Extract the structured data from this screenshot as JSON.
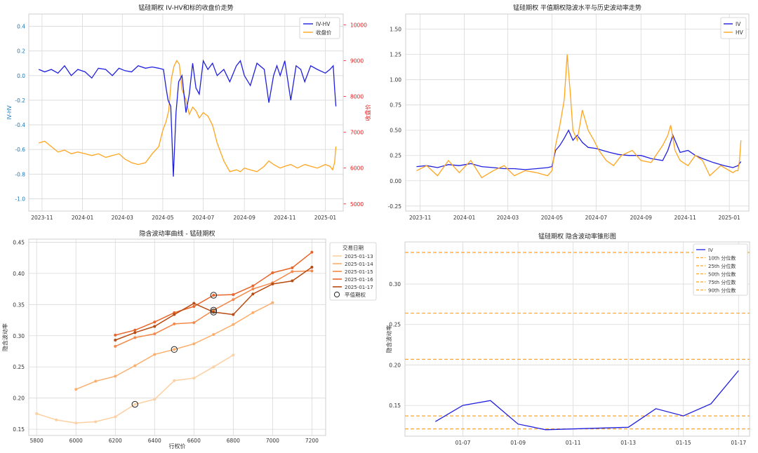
{
  "colors": {
    "iv_blue": "#1f1fe0",
    "orange": "#ffa51f",
    "red_axis": "#e02020",
    "blue_axis": "#1f77b4",
    "grid": "#d9d9d9",
    "frame": "#cfcfcf"
  },
  "chart_data": [
    {
      "type": "line",
      "title": "锰硅期权 IV-HV和标的收盘价走势",
      "ylabel": "IV-HV",
      "ylabel_right": "收盘价",
      "x_ticks": [
        "2023-11",
        "2024-01",
        "2024-03",
        "2024-05",
        "2024-07",
        "2024-09",
        "2024-11",
        "2025-01"
      ],
      "y_ticks": [
        "-1.0",
        "-0.8",
        "-0.6",
        "-0.4",
        "-0.2",
        "0.0",
        "0.2",
        "0.4"
      ],
      "y2_ticks": [
        "5000",
        "6000",
        "7000",
        "8000",
        "9000",
        "10000"
      ],
      "ylim": [
        -1.1,
        0.5
      ],
      "y2lim": [
        4800,
        10300
      ],
      "legend": [
        "IV-HV",
        "收盘价"
      ],
      "legend_position": "top-right",
      "grid": true,
      "series": [
        {
          "name": "IV-HV",
          "x": [
            "2023-10-27",
            "2023-11-05",
            "2023-11-15",
            "2023-11-25",
            "2023-12-05",
            "2023-12-15",
            "2023-12-25",
            "2024-01-05",
            "2024-01-15",
            "2024-01-25",
            "2024-02-05",
            "2024-02-15",
            "2024-02-25",
            "2024-03-05",
            "2024-03-15",
            "2024-03-25",
            "2024-04-05",
            "2024-04-15",
            "2024-04-25",
            "2024-05-02",
            "2024-05-06",
            "2024-05-09",
            "2024-05-13",
            "2024-05-17",
            "2024-05-21",
            "2024-05-25",
            "2024-05-30",
            "2024-06-05",
            "2024-06-10",
            "2024-06-15",
            "2024-06-20",
            "2024-06-25",
            "2024-07-01",
            "2024-07-08",
            "2024-07-15",
            "2024-07-22",
            "2024-08-01",
            "2024-08-10",
            "2024-08-20",
            "2024-08-26",
            "2024-09-01",
            "2024-09-10",
            "2024-09-20",
            "2024-10-01",
            "2024-10-08",
            "2024-10-15",
            "2024-10-20",
            "2024-10-25",
            "2024-11-01",
            "2024-11-10",
            "2024-11-18",
            "2024-11-25",
            "2024-12-01",
            "2024-12-10",
            "2024-12-20",
            "2025-01-01",
            "2025-01-08",
            "2025-01-13",
            "2025-01-15",
            "2025-01-17"
          ],
          "values": [
            0.05,
            0.03,
            0.05,
            0.02,
            0.08,
            0.0,
            0.05,
            0.03,
            -0.02,
            0.06,
            0.05,
            0.0,
            0.06,
            0.04,
            0.03,
            0.08,
            0.06,
            0.07,
            0.06,
            0.05,
            -0.1,
            -0.2,
            -0.25,
            -0.82,
            -0.3,
            -0.05,
            0.0,
            -0.3,
            -0.15,
            0.1,
            -0.1,
            -0.15,
            0.12,
            0.05,
            0.1,
            0.0,
            0.05,
            -0.05,
            0.08,
            0.12,
            0.0,
            -0.08,
            0.1,
            0.05,
            -0.22,
            0.0,
            0.08,
            0.0,
            0.12,
            -0.2,
            0.08,
            0.05,
            -0.05,
            0.08,
            0.05,
            0.02,
            0.05,
            0.08,
            -0.1,
            -0.25
          ]
        },
        {
          "name": "收盘价",
          "x": [
            "2023-10-27",
            "2023-11-05",
            "2023-11-15",
            "2023-11-25",
            "2023-12-05",
            "2023-12-15",
            "2023-12-25",
            "2024-01-05",
            "2024-01-15",
            "2024-01-25",
            "2024-02-05",
            "2024-02-15",
            "2024-02-25",
            "2024-03-05",
            "2024-03-15",
            "2024-03-25",
            "2024-04-05",
            "2024-04-15",
            "2024-04-25",
            "2024-05-01",
            "2024-05-06",
            "2024-05-10",
            "2024-05-14",
            "2024-05-18",
            "2024-05-22",
            "2024-05-26",
            "2024-05-30",
            "2024-06-05",
            "2024-06-10",
            "2024-06-15",
            "2024-06-20",
            "2024-06-25",
            "2024-07-01",
            "2024-07-08",
            "2024-07-15",
            "2024-07-22",
            "2024-08-01",
            "2024-08-10",
            "2024-08-20",
            "2024-08-26",
            "2024-09-01",
            "2024-09-10",
            "2024-09-20",
            "2024-10-01",
            "2024-10-08",
            "2024-10-15",
            "2024-10-25",
            "2024-11-01",
            "2024-11-10",
            "2024-11-20",
            "2024-12-01",
            "2024-12-10",
            "2024-12-20",
            "2025-01-01",
            "2025-01-08",
            "2025-01-12",
            "2025-01-15",
            "2025-01-17"
          ],
          "values": [
            6700,
            6750,
            6600,
            6450,
            6500,
            6400,
            6450,
            6400,
            6350,
            6400,
            6300,
            6350,
            6400,
            6250,
            6150,
            6100,
            6150,
            6400,
            6600,
            7050,
            7300,
            7600,
            8500,
            8850,
            9000,
            8900,
            8200,
            7900,
            7500,
            7700,
            7600,
            7400,
            7550,
            7450,
            7200,
            6700,
            6200,
            5900,
            5950,
            5900,
            6000,
            5950,
            5900,
            6050,
            6200,
            6100,
            6000,
            6050,
            6100,
            6000,
            6100,
            6050,
            6000,
            6100,
            6050,
            5950,
            6150,
            6600
          ]
        }
      ]
    },
    {
      "type": "line",
      "title": "锰硅期权 平值期权隐波水平与历史波动率走势",
      "x_ticks": [
        "2023-11",
        "2024-01",
        "2024-03",
        "2024-05",
        "2024-07",
        "2024-09",
        "2024-11",
        "2025-01"
      ],
      "y_ticks": [
        "-0.25",
        "0.00",
        "0.25",
        "0.50",
        "0.75",
        "1.00",
        "1.25",
        "1.50"
      ],
      "ylim": [
        -0.3,
        1.65
      ],
      "legend": [
        "IV",
        "HV"
      ],
      "legend_position": "top-right",
      "grid": true,
      "series": [
        {
          "name": "IV",
          "x": [
            "2023-10-27",
            "2023-11-10",
            "2023-11-25",
            "2023-12-10",
            "2023-12-25",
            "2024-01-10",
            "2024-01-25",
            "2024-02-10",
            "2024-02-25",
            "2024-03-10",
            "2024-03-25",
            "2024-04-10",
            "2024-04-25",
            "2024-05-01",
            "2024-05-06",
            "2024-05-12",
            "2024-05-18",
            "2024-05-24",
            "2024-05-30",
            "2024-06-05",
            "2024-06-12",
            "2024-06-20",
            "2024-07-01",
            "2024-07-10",
            "2024-07-20",
            "2024-08-01",
            "2024-08-15",
            "2024-09-01",
            "2024-09-15",
            "2024-10-01",
            "2024-10-08",
            "2024-10-15",
            "2024-10-25",
            "2024-11-05",
            "2024-11-15",
            "2024-11-25",
            "2024-12-10",
            "2024-12-25",
            "2025-01-06",
            "2025-01-13",
            "2025-01-17"
          ],
          "values": [
            0.14,
            0.15,
            0.13,
            0.16,
            0.15,
            0.17,
            0.14,
            0.13,
            0.12,
            0.12,
            0.11,
            0.12,
            0.13,
            0.14,
            0.3,
            0.35,
            0.42,
            0.5,
            0.4,
            0.45,
            0.38,
            0.33,
            0.32,
            0.3,
            0.28,
            0.26,
            0.25,
            0.25,
            0.22,
            0.2,
            0.3,
            0.45,
            0.28,
            0.3,
            0.25,
            0.22,
            0.18,
            0.15,
            0.13,
            0.15,
            0.19
          ]
        },
        {
          "name": "HV",
          "x": [
            "2023-10-27",
            "2023-11-10",
            "2023-11-25",
            "2023-12-10",
            "2023-12-25",
            "2024-01-10",
            "2024-01-25",
            "2024-02-10",
            "2024-02-25",
            "2024-03-10",
            "2024-03-25",
            "2024-04-10",
            "2024-04-25",
            "2024-05-01",
            "2024-05-06",
            "2024-05-12",
            "2024-05-18",
            "2024-05-22",
            "2024-05-26",
            "2024-05-30",
            "2024-06-05",
            "2024-06-12",
            "2024-06-20",
            "2024-06-28",
            "2024-07-05",
            "2024-07-15",
            "2024-07-25",
            "2024-08-05",
            "2024-08-20",
            "2024-09-01",
            "2024-09-15",
            "2024-10-01",
            "2024-10-08",
            "2024-10-12",
            "2024-10-18",
            "2024-10-25",
            "2024-11-05",
            "2024-11-15",
            "2024-11-25",
            "2024-12-05",
            "2024-12-20",
            "2025-01-06",
            "2025-01-10",
            "2025-01-13",
            "2025-01-15",
            "2025-01-17"
          ],
          "values": [
            0.1,
            0.15,
            0.05,
            0.2,
            0.08,
            0.2,
            0.03,
            0.1,
            0.15,
            0.05,
            0.1,
            0.08,
            0.05,
            0.1,
            0.35,
            0.55,
            0.8,
            1.25,
            0.9,
            0.5,
            0.4,
            0.7,
            0.5,
            0.4,
            0.3,
            0.2,
            0.15,
            0.25,
            0.3,
            0.2,
            0.18,
            0.35,
            0.45,
            0.55,
            0.3,
            0.2,
            0.15,
            0.25,
            0.2,
            0.05,
            0.15,
            0.08,
            0.1,
            0.1,
            0.2,
            0.4
          ]
        }
      ]
    },
    {
      "type": "line",
      "title": "隐含波动率曲线 - 锰硅期权",
      "xlabel": "行权价",
      "ylabel": "隐含波动率",
      "x_ticks": [
        "5800",
        "6000",
        "6200",
        "6400",
        "6600",
        "6800",
        "7000",
        "7200"
      ],
      "y_ticks": [
        "0.15",
        "0.20",
        "0.25",
        "0.30",
        "0.35",
        "0.40",
        "0.45"
      ],
      "xlim": [
        5760,
        7270
      ],
      "ylim": [
        0.14,
        0.455
      ],
      "legend_title": "交易日期",
      "legend": [
        "2025-01-13",
        "2025-01-14",
        "2025-01-15",
        "2025-01-16",
        "2025-01-17",
        "平值期权"
      ],
      "legend_position": "top-right",
      "grid": true,
      "series": [
        {
          "name": "2025-01-13",
          "color": "#fdd0a2",
          "x": [
            5800,
            5900,
            6000,
            6100,
            6200,
            6300,
            6400,
            6500,
            6600,
            6700,
            6800
          ],
          "values": [
            0.175,
            0.165,
            0.16,
            0.162,
            0.17,
            0.19,
            0.198,
            0.228,
            0.232,
            0.25,
            0.269
          ]
        },
        {
          "name": "2025-01-14",
          "color": "#fdae6b",
          "x": [
            6000,
            6100,
            6200,
            6300,
            6400,
            6500,
            6600,
            6700,
            6800,
            6900,
            7000
          ],
          "values": [
            0.214,
            0.227,
            0.235,
            0.252,
            0.27,
            0.278,
            0.287,
            0.302,
            0.318,
            0.337,
            0.353
          ]
        },
        {
          "name": "2025-01-15",
          "color": "#f4894a",
          "x": [
            6200,
            6300,
            6400,
            6500,
            6600,
            6700,
            6800,
            6900,
            7000,
            7100,
            7200
          ],
          "values": [
            0.283,
            0.297,
            0.303,
            0.319,
            0.321,
            0.341,
            0.358,
            0.375,
            0.385,
            0.403,
            0.404
          ]
        },
        {
          "name": "2025-01-16",
          "color": "#e8662a",
          "x": [
            6200,
            6300,
            6400,
            6500,
            6600,
            6700,
            6800,
            6900,
            7000,
            7100,
            7200
          ],
          "values": [
            0.301,
            0.309,
            0.322,
            0.337,
            0.347,
            0.365,
            0.366,
            0.38,
            0.401,
            0.409,
            0.434
          ]
        },
        {
          "name": "2025-01-17",
          "color": "#b84a12",
          "x": [
            6200,
            6300,
            6400,
            6500,
            6600,
            6700,
            6800,
            6900,
            7000,
            7100,
            7200
          ],
          "values": [
            0.293,
            0.305,
            0.315,
            0.334,
            0.352,
            0.338,
            0.334,
            0.367,
            0.383,
            0.388,
            0.41
          ]
        }
      ],
      "atm_points": [
        {
          "x": 6300,
          "value": 0.19
        },
        {
          "x": 6500,
          "value": 0.278
        },
        {
          "x": 6700,
          "value": 0.365
        },
        {
          "x": 6700,
          "value": 0.341
        },
        {
          "x": 6700,
          "value": 0.338
        }
      ]
    },
    {
      "type": "line",
      "title": "锰硅期权 隐含波动率锥形图",
      "ylabel": "隐含波动率",
      "x_ticks": [
        "01-07",
        "01-09",
        "01-11",
        "01-13",
        "01-15",
        "01-17"
      ],
      "x_tick_values": [
        "2025-01-07",
        "2025-01-09",
        "2025-01-11",
        "2025-01-13",
        "2025-01-15",
        "2025-01-17"
      ],
      "y_ticks": [
        "0.15",
        "0.20",
        "0.25",
        "0.30"
      ],
      "ylim": [
        0.112,
        0.352
      ],
      "xlim": [
        "2025-01-05",
        "2025-01-17"
      ],
      "legend": [
        "IV",
        "10th 分位数",
        "25th 分位数",
        "50th 分位数",
        "75th 分位数",
        "90th 分位数"
      ],
      "legend_position": "top-right",
      "grid": true,
      "series": [
        {
          "name": "IV",
          "x": [
            "2025-01-06",
            "2025-01-07",
            "2025-01-08",
            "2025-01-09",
            "2025-01-10",
            "2025-01-13",
            "2025-01-14",
            "2025-01-15",
            "2025-01-16",
            "2025-01-17"
          ],
          "values": [
            0.13,
            0.15,
            0.156,
            0.127,
            0.12,
            0.123,
            0.146,
            0.137,
            0.152,
            0.193
          ]
        }
      ],
      "percentiles": [
        {
          "name": "10th 分位数",
          "value": 0.121
        },
        {
          "name": "25th 分位数",
          "value": 0.137
        },
        {
          "name": "50th 分位数",
          "value": 0.207
        },
        {
          "name": "75th 分位数",
          "value": 0.264
        },
        {
          "name": "90th 分位数",
          "value": 0.339
        }
      ]
    }
  ]
}
